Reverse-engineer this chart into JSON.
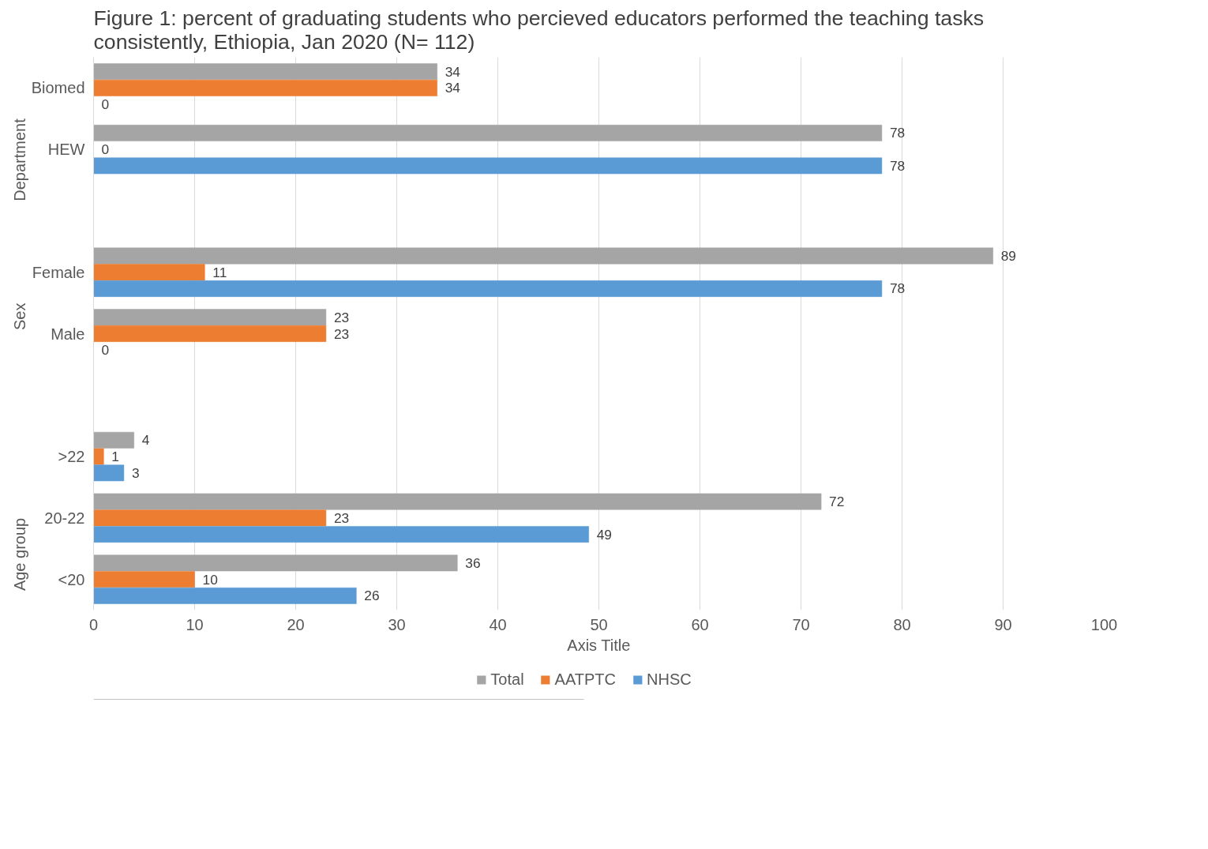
{
  "chart_data": {
    "type": "bar",
    "orientation": "horizontal",
    "title": "Figure 1: percent of graduating students who percieved educators performed the teaching tasks consistently, Ethiopia, Jan 2020 (N= 112)",
    "xlabel": "Axis Title",
    "categories": [
      "Biomed",
      "HEW",
      null,
      "Female",
      "Male",
      null,
      ">22",
      "20-22",
      "<20"
    ],
    "series": [
      {
        "name": "Total",
        "color": "#a5a5a5",
        "values": [
          34,
          78,
          null,
          89,
          23,
          null,
          4,
          72,
          36
        ]
      },
      {
        "name": "AATPTC",
        "color": "#ed7d31",
        "values": [
          34,
          0,
          null,
          11,
          23,
          null,
          1,
          23,
          10
        ]
      },
      {
        "name": "NHSC",
        "color": "#5b9bd5",
        "values": [
          0,
          78,
          null,
          78,
          0,
          null,
          3,
          49,
          26
        ]
      }
    ],
    "annotations": [
      "Department",
      "Sex",
      "Age group"
    ],
    "xlim": [
      0,
      100
    ],
    "xticks": [
      0,
      10,
      20,
      30,
      40,
      50,
      60,
      70,
      80,
      90,
      100
    ],
    "grid": "x",
    "legend": "bottom",
    "data_labels": true
  }
}
